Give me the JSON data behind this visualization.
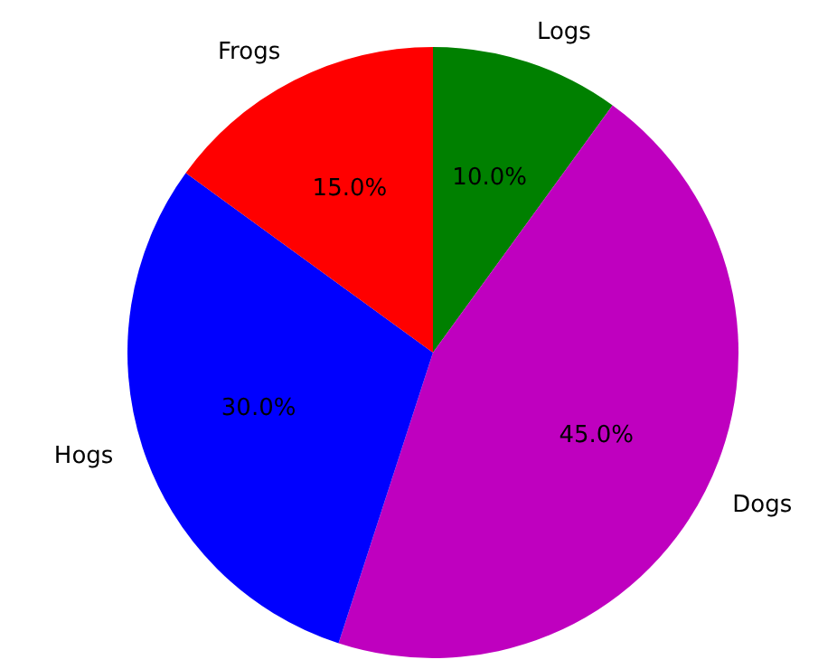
{
  "chart_data": {
    "type": "pie",
    "categories": [
      "Frogs",
      "Hogs",
      "Dogs",
      "Logs"
    ],
    "values": [
      15,
      30,
      45,
      10
    ],
    "colors": [
      "#ff0000",
      "#0000ff",
      "#bf00bf",
      "#008000"
    ],
    "value_labels": [
      "15.0%",
      "30.0%",
      "45.0%",
      "10.0%"
    ],
    "legend": false
  }
}
